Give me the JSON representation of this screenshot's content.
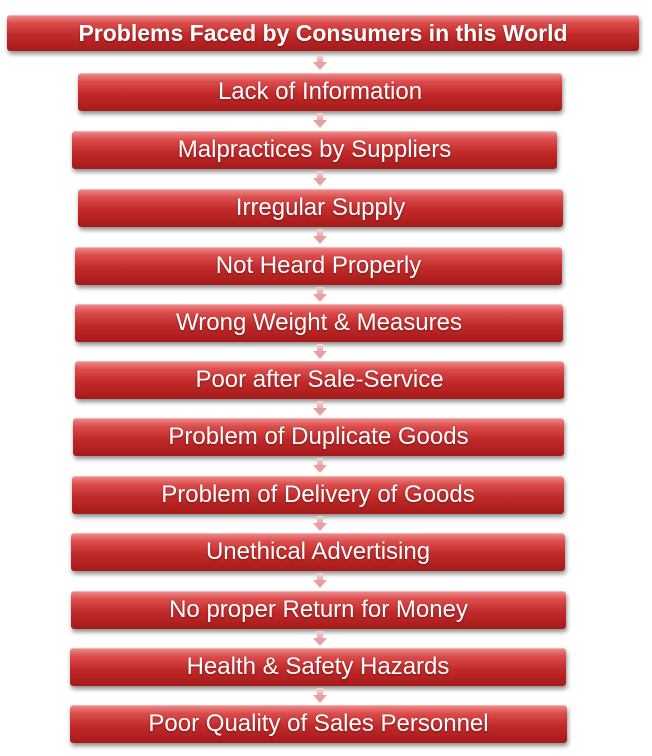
{
  "diagram": {
    "title": "Problems Faced by Consumers in this World",
    "items": [
      "Lack of Information",
      "Malpractices by Suppliers",
      "Irregular Supply",
      "Not Heard Properly",
      "Wrong Weight & Measures",
      "Poor after Sale-Service",
      "Problem of Duplicate Goods",
      "Problem of Delivery of Goods",
      "Unethical Advertising",
      "No proper Return for Money",
      "Health & Safety Hazards",
      "Poor Quality of Sales Personnel"
    ],
    "colors": {
      "box_fill": "#c22a2a",
      "box_highlight": "#ef8f8f",
      "arrow": "#e6a0a0",
      "text": "#ffffff"
    }
  }
}
